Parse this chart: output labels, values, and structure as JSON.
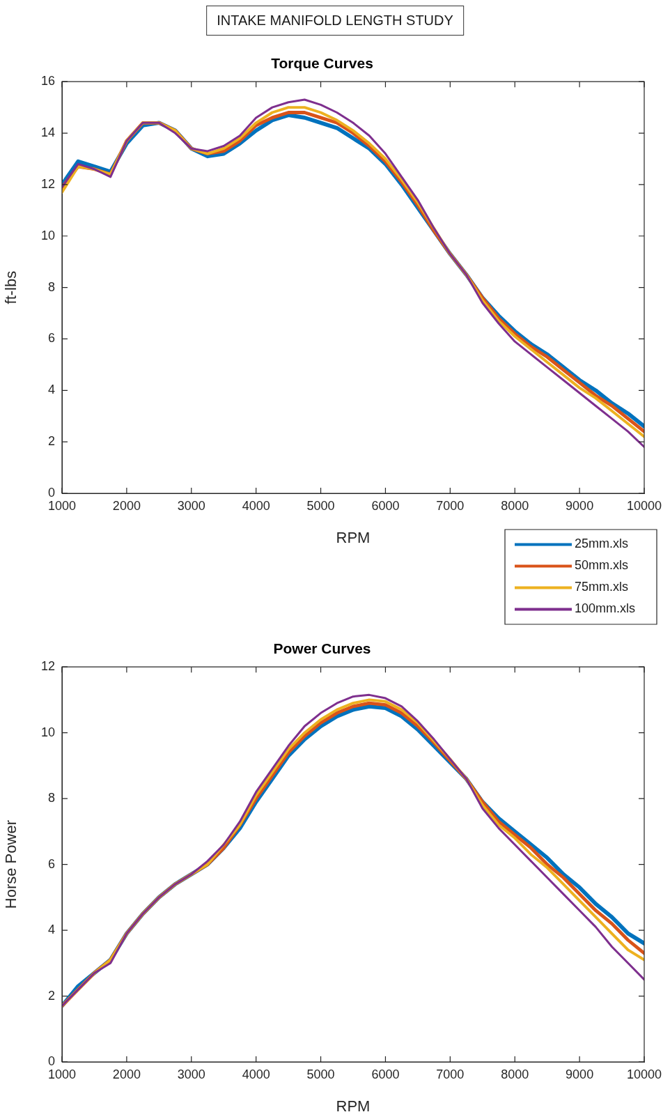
{
  "chart_data": [
    {
      "type": "line",
      "title": "Torque Curves",
      "xlabel": "RPM",
      "ylabel": "ft-lbs",
      "annotations": [
        "INTAKE MANIFOLD LENGTH STUDY"
      ],
      "legend": "bottom right",
      "x": [
        1000,
        1250,
        1500,
        1750,
        2000,
        2250,
        2500,
        2750,
        3000,
        3250,
        3500,
        3750,
        4000,
        4250,
        4500,
        4750,
        5000,
        5250,
        5500,
        5750,
        6000,
        6250,
        6500,
        6750,
        7000,
        7250,
        7500,
        7750,
        8000,
        8250,
        8500,
        8750,
        9000,
        9250,
        9500,
        9750,
        10000
      ],
      "xlim": [
        1000,
        10000
      ],
      "xticks": [
        1000,
        2000,
        3000,
        4000,
        5000,
        6000,
        7000,
        8000,
        9000,
        10000
      ],
      "ylim": [
        0,
        16
      ],
      "yticks": [
        0,
        2,
        4,
        6,
        8,
        10,
        12,
        14,
        16
      ],
      "series": [
        {
          "name": "25mm.xls",
          "color": "#0072bd",
          "values": [
            12.0,
            12.9,
            12.7,
            12.5,
            13.6,
            14.3,
            14.4,
            14.1,
            13.4,
            13.1,
            13.2,
            13.6,
            14.1,
            14.5,
            14.7,
            14.6,
            14.4,
            14.2,
            13.8,
            13.4,
            12.8,
            12.0,
            11.1,
            10.2,
            9.3,
            8.5,
            7.6,
            6.9,
            6.3,
            5.8,
            5.4,
            4.9,
            4.4,
            4.0,
            3.5,
            3.1,
            2.6
          ]
        },
        {
          "name": "50mm.xls",
          "color": "#d95319",
          "values": [
            11.9,
            12.7,
            12.6,
            12.4,
            13.7,
            14.4,
            14.4,
            14.1,
            13.4,
            13.2,
            13.3,
            13.7,
            14.3,
            14.6,
            14.8,
            14.8,
            14.6,
            14.4,
            14.0,
            13.5,
            12.9,
            12.1,
            11.2,
            10.2,
            9.3,
            8.5,
            7.6,
            6.8,
            6.2,
            5.7,
            5.3,
            4.8,
            4.3,
            3.8,
            3.4,
            2.9,
            2.4
          ]
        },
        {
          "name": "75mm.xls",
          "color": "#edb120",
          "values": [
            11.7,
            12.7,
            12.6,
            12.4,
            13.7,
            14.4,
            14.4,
            14.1,
            13.4,
            13.2,
            13.4,
            13.8,
            14.4,
            14.8,
            15.0,
            15.0,
            14.8,
            14.5,
            14.1,
            13.6,
            13.0,
            12.2,
            11.3,
            10.3,
            9.3,
            8.5,
            7.5,
            6.7,
            6.1,
            5.6,
            5.1,
            4.6,
            4.1,
            3.7,
            3.2,
            2.7,
            2.2
          ]
        },
        {
          "name": "100mm.xls",
          "color": "#7e2f8e",
          "values": [
            11.9,
            12.8,
            12.6,
            12.3,
            13.7,
            14.4,
            14.4,
            14.0,
            13.4,
            13.3,
            13.5,
            13.9,
            14.6,
            15.0,
            15.2,
            15.3,
            15.1,
            14.8,
            14.4,
            13.9,
            13.2,
            12.3,
            11.4,
            10.3,
            9.3,
            8.5,
            7.4,
            6.6,
            5.9,
            5.4,
            4.9,
            4.4,
            3.9,
            3.4,
            2.9,
            2.4,
            1.8
          ]
        }
      ]
    },
    {
      "type": "line",
      "title": "Power Curves",
      "xlabel": "RPM",
      "ylabel": "Horse Power",
      "x": [
        1000,
        1250,
        1500,
        1750,
        2000,
        2250,
        2500,
        2750,
        3000,
        3250,
        3500,
        3750,
        4000,
        4250,
        4500,
        4750,
        5000,
        5250,
        5500,
        5750,
        6000,
        6250,
        6500,
        6750,
        7000,
        7250,
        7500,
        7750,
        8000,
        8250,
        8500,
        8750,
        9000,
        9250,
        9500,
        9750,
        10000
      ],
      "xlim": [
        1000,
        10000
      ],
      "xticks": [
        1000,
        2000,
        3000,
        4000,
        5000,
        6000,
        7000,
        8000,
        9000,
        10000
      ],
      "ylim": [
        0,
        12
      ],
      "yticks": [
        0,
        2,
        4,
        6,
        8,
        10,
        12
      ],
      "series": [
        {
          "color": "#0072bd",
          "values": [
            1.7,
            2.3,
            2.7,
            3.1,
            3.9,
            4.5,
            5.0,
            5.4,
            5.7,
            6.0,
            6.5,
            7.1,
            7.9,
            8.6,
            9.3,
            9.8,
            10.2,
            10.5,
            10.7,
            10.8,
            10.75,
            10.5,
            10.1,
            9.6,
            9.1,
            8.6,
            7.9,
            7.4,
            7.0,
            6.6,
            6.2,
            5.7,
            5.3,
            4.8,
            4.4,
            3.9,
            3.6
          ]
        },
        {
          "color": "#d95319",
          "values": [
            1.7,
            2.2,
            2.7,
            3.1,
            3.9,
            4.5,
            5.0,
            5.4,
            5.7,
            6.0,
            6.5,
            7.2,
            8.0,
            8.7,
            9.4,
            9.9,
            10.3,
            10.6,
            10.8,
            10.9,
            10.85,
            10.6,
            10.2,
            9.7,
            9.15,
            8.6,
            7.9,
            7.3,
            6.9,
            6.5,
            6.0,
            5.6,
            5.1,
            4.6,
            4.2,
            3.7,
            3.3
          ]
        },
        {
          "color": "#edb120",
          "values": [
            1.7,
            2.2,
            2.7,
            3.1,
            3.9,
            4.5,
            5.0,
            5.4,
            5.7,
            6.0,
            6.6,
            7.2,
            8.1,
            8.8,
            9.5,
            10.0,
            10.4,
            10.7,
            10.9,
            11.0,
            10.95,
            10.7,
            10.3,
            9.75,
            9.2,
            8.6,
            7.8,
            7.2,
            6.8,
            6.3,
            5.9,
            5.4,
            4.9,
            4.4,
            3.9,
            3.4,
            3.1
          ]
        },
        {
          "color": "#7e2f8e",
          "values": [
            1.7,
            2.2,
            2.7,
            3.0,
            3.9,
            4.5,
            5.0,
            5.4,
            5.7,
            6.1,
            6.6,
            7.3,
            8.2,
            8.9,
            9.6,
            10.2,
            10.6,
            10.9,
            11.1,
            11.15,
            11.05,
            10.8,
            10.35,
            9.8,
            9.2,
            8.6,
            7.7,
            7.1,
            6.6,
            6.1,
            5.6,
            5.1,
            4.6,
            4.1,
            3.5,
            3.0,
            2.5
          ]
        }
      ]
    }
  ]
}
